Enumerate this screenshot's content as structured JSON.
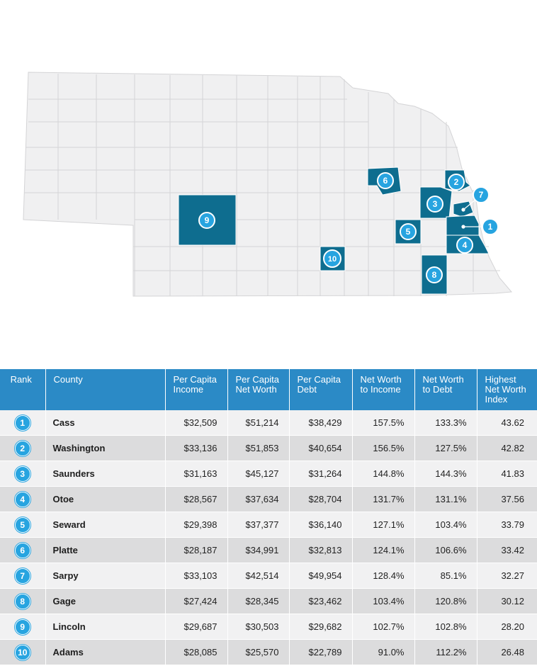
{
  "map": {
    "state_color": "#f0f0f1",
    "border_color": "#d4d4d6",
    "highlight_color": "#0e6d8f",
    "marker_color": "#27a4e0",
    "markers": [
      {
        "rank": "1",
        "county": "Cass"
      },
      {
        "rank": "2",
        "county": "Washington"
      },
      {
        "rank": "3",
        "county": "Saunders"
      },
      {
        "rank": "4",
        "county": "Otoe"
      },
      {
        "rank": "5",
        "county": "Seward"
      },
      {
        "rank": "6",
        "county": "Platte"
      },
      {
        "rank": "7",
        "county": "Sarpy"
      },
      {
        "rank": "8",
        "county": "Gage"
      },
      {
        "rank": "9",
        "county": "Lincoln"
      },
      {
        "rank": "10",
        "county": "Adams"
      }
    ]
  },
  "table": {
    "header_color": "#2b8ac6",
    "headers": {
      "rank": "Rank",
      "county": "County",
      "income_1": "Per Capita",
      "income_2": "Income",
      "worth_1": "Per Capita",
      "worth_2": "Net Worth",
      "debt_1": "Per Capita",
      "debt_2": "Debt",
      "nwi_1": "Net Worth",
      "nwi_2": "to Income",
      "nwd_1": "Net Worth",
      "nwd_2": "to Debt",
      "idx_1": "Highest",
      "idx_2": "Net Worth",
      "idx_3": "Index"
    },
    "rows": [
      {
        "rank": "1",
        "county": "Cass",
        "income": "$32,509",
        "net_worth": "$51,214",
        "debt": "$38,429",
        "nw_to_income": "157.5%",
        "nw_to_debt": "133.3%",
        "index": "43.62"
      },
      {
        "rank": "2",
        "county": "Washington",
        "income": "$33,136",
        "net_worth": "$51,853",
        "debt": "$40,654",
        "nw_to_income": "156.5%",
        "nw_to_debt": "127.5%",
        "index": "42.82"
      },
      {
        "rank": "3",
        "county": "Saunders",
        "income": "$31,163",
        "net_worth": "$45,127",
        "debt": "$31,264",
        "nw_to_income": "144.8%",
        "nw_to_debt": "144.3%",
        "index": "41.83"
      },
      {
        "rank": "4",
        "county": "Otoe",
        "income": "$28,567",
        "net_worth": "$37,634",
        "debt": "$28,704",
        "nw_to_income": "131.7%",
        "nw_to_debt": "131.1%",
        "index": "37.56"
      },
      {
        "rank": "5",
        "county": "Seward",
        "income": "$29,398",
        "net_worth": "$37,377",
        "debt": "$36,140",
        "nw_to_income": "127.1%",
        "nw_to_debt": "103.4%",
        "index": "33.79"
      },
      {
        "rank": "6",
        "county": "Platte",
        "income": "$28,187",
        "net_worth": "$34,991",
        "debt": "$32,813",
        "nw_to_income": "124.1%",
        "nw_to_debt": "106.6%",
        "index": "33.42"
      },
      {
        "rank": "7",
        "county": "Sarpy",
        "income": "$33,103",
        "net_worth": "$42,514",
        "debt": "$49,954",
        "nw_to_income": "128.4%",
        "nw_to_debt": "85.1%",
        "index": "32.27"
      },
      {
        "rank": "8",
        "county": "Gage",
        "income": "$27,424",
        "net_worth": "$28,345",
        "debt": "$23,462",
        "nw_to_income": "103.4%",
        "nw_to_debt": "120.8%",
        "index": "30.12"
      },
      {
        "rank": "9",
        "county": "Lincoln",
        "income": "$29,687",
        "net_worth": "$30,503",
        "debt": "$29,682",
        "nw_to_income": "102.7%",
        "nw_to_debt": "102.8%",
        "index": "28.20"
      },
      {
        "rank": "10",
        "county": "Adams",
        "income": "$28,085",
        "net_worth": "$25,570",
        "debt": "$22,789",
        "nw_to_income": "91.0%",
        "nw_to_debt": "112.2%",
        "index": "26.48"
      }
    ]
  }
}
